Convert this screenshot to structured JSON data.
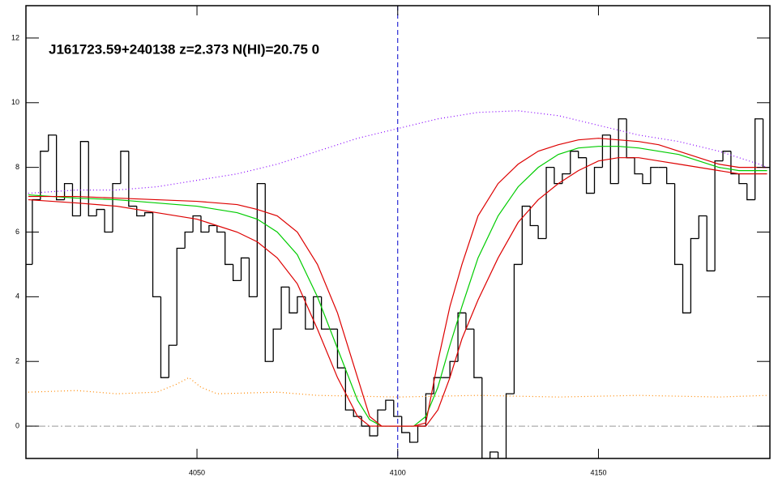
{
  "chart_data": {
    "type": "line",
    "annotation": "J161723.59+240138 z=2.373 N(HI)=20.75 0",
    "xlim": [
      4007.4,
      4192.7
    ],
    "ylim": [
      -1,
      13
    ],
    "xticks": [
      4050,
      4100,
      4150
    ],
    "yticks": [
      0,
      2,
      4,
      6,
      8,
      10,
      12
    ],
    "vline": 4100,
    "hline": 0,
    "series": [
      {
        "color": "#000000",
        "style": "step",
        "x": [
          4008,
          4010,
          4012,
          4014,
          4016,
          4018,
          4020,
          4022,
          4024,
          4026,
          4028,
          4030,
          4032,
          4034,
          4036,
          4038,
          4040,
          4042,
          4044,
          4046,
          4048,
          4050,
          4052,
          4054,
          4056,
          4058,
          4060,
          4062,
          4064,
          4066,
          4068,
          4070,
          4072,
          4074,
          4076,
          4078,
          4080,
          4082,
          4084,
          4086,
          4088,
          4090,
          4092,
          4094,
          4096,
          4098,
          4100,
          4102,
          4104,
          4106,
          4108,
          4110,
          4112,
          4114,
          4116,
          4118,
          4120,
          4122,
          4124,
          4126,
          4128,
          4130,
          4132,
          4134,
          4136,
          4138,
          4140,
          4142,
          4144,
          4146,
          4148,
          4150,
          4152,
          4154,
          4156,
          4158,
          4160,
          4162,
          4164,
          4166,
          4168,
          4170,
          4172,
          4174,
          4176,
          4178,
          4180,
          4182,
          4184,
          4186,
          4188,
          4190,
          4192
        ],
        "values": [
          5,
          7,
          8.5,
          9,
          7,
          7.5,
          6.5,
          8.8,
          6.5,
          6.7,
          6,
          7.5,
          8.5,
          6.8,
          6.5,
          6.6,
          4,
          1.5,
          2.5,
          5.5,
          6,
          6.5,
          6,
          6.2,
          6,
          5,
          4.5,
          5.2,
          4,
          7.5,
          2,
          3,
          4.3,
          3.5,
          4,
          3,
          4,
          3,
          3,
          1.8,
          0.5,
          0.3,
          0,
          -0.3,
          0.5,
          0.8,
          0.3,
          -0.2,
          -0.5,
          0,
          1,
          1.5,
          1.5,
          2,
          3.5,
          3,
          1.5,
          -1,
          -0.8,
          -1,
          1,
          5,
          6.8,
          6.2,
          5.8,
          8,
          7.5,
          7.8,
          8.5,
          8.3,
          7.2,
          8,
          9,
          7.5,
          9.5,
          8.3,
          7.8,
          7.5,
          8,
          8,
          7.5,
          5,
          3.5,
          5.8,
          6.5,
          4.8,
          8.2,
          8.5,
          7.8,
          7.5,
          7,
          9.5,
          8
        ]
      },
      {
        "color": "#00cc00",
        "style": "solid",
        "x": [
          4008,
          4020,
          4030,
          4040,
          4050,
          4060,
          4065,
          4070,
          4075,
          4080,
          4085,
          4090,
          4093,
          4096,
          4100,
          4104,
          4107,
          4110,
          4113,
          4116,
          4120,
          4125,
          4130,
          4135,
          4140,
          4145,
          4150,
          4155,
          4160,
          4165,
          4170,
          4175,
          4180,
          4185,
          4192
        ],
        "values": [
          7.15,
          7.05,
          7,
          6.9,
          6.8,
          6.6,
          6.4,
          6,
          5.3,
          4,
          2.4,
          0.8,
          0.2,
          0,
          0,
          0,
          0.3,
          1.2,
          2.5,
          3.7,
          5.2,
          6.5,
          7.4,
          8,
          8.4,
          8.6,
          8.65,
          8.65,
          8.6,
          8.5,
          8.4,
          8.2,
          8,
          7.9,
          7.9
        ]
      },
      {
        "color": "#dd0000",
        "style": "solid",
        "x": [
          4008,
          4020,
          4030,
          4040,
          4050,
          4060,
          4065,
          4070,
          4075,
          4080,
          4085,
          4090,
          4093,
          4096,
          4100,
          4104,
          4107,
          4110,
          4113,
          4116,
          4120,
          4125,
          4130,
          4135,
          4140,
          4145,
          4150,
          4155,
          4160,
          4165,
          4170,
          4175,
          4180,
          4185,
          4192
        ],
        "values": [
          7.1,
          7.1,
          7.05,
          7,
          6.95,
          6.85,
          6.7,
          6.5,
          6,
          5,
          3.5,
          1.5,
          0.3,
          0,
          0,
          0,
          0.1,
          2,
          3.7,
          5,
          6.5,
          7.5,
          8.1,
          8.5,
          8.7,
          8.85,
          8.9,
          8.85,
          8.8,
          8.7,
          8.5,
          8.3,
          8.1,
          8,
          8
        ]
      },
      {
        "color": "#dd0000",
        "style": "solid",
        "x": [
          4008,
          4020,
          4030,
          4040,
          4050,
          4060,
          4065,
          4070,
          4075,
          4080,
          4085,
          4090,
          4093,
          4096,
          4100,
          4104,
          4107,
          4110,
          4113,
          4116,
          4120,
          4125,
          4130,
          4135,
          4140,
          4145,
          4150,
          4155,
          4160,
          4165,
          4170,
          4175,
          4180,
          4185,
          4192
        ],
        "values": [
          7,
          6.9,
          6.8,
          6.6,
          6.4,
          6,
          5.7,
          5.2,
          4.4,
          3,
          1.5,
          0.3,
          0,
          0,
          0,
          0,
          0,
          0.5,
          1.5,
          2.7,
          3.9,
          5.2,
          6.3,
          7,
          7.5,
          7.9,
          8.2,
          8.3,
          8.3,
          8.2,
          8.1,
          8,
          7.9,
          7.8,
          7.8
        ]
      },
      {
        "color": "#8800ff",
        "style": "dotted",
        "x": [
          4008,
          4020,
          4030,
          4040,
          4050,
          4060,
          4070,
          4080,
          4090,
          4100,
          4110,
          4120,
          4130,
          4140,
          4150,
          4160,
          4170,
          4180,
          4190,
          4192
        ],
        "values": [
          7.2,
          7.3,
          7.3,
          7.4,
          7.6,
          7.8,
          8.1,
          8.5,
          8.9,
          9.2,
          9.5,
          9.7,
          9.75,
          9.6,
          9.3,
          9,
          8.8,
          8.5,
          8.1,
          8
        ]
      },
      {
        "color": "#ff8800",
        "style": "dotted",
        "x": [
          4008,
          4020,
          4030,
          4040,
          4045,
          4048,
          4051,
          4055,
          4070,
          4080,
          4100,
          4120,
          4140,
          4160,
          4180,
          4192
        ],
        "values": [
          1.05,
          1.1,
          1.0,
          1.05,
          1.3,
          1.5,
          1.2,
          1.0,
          1.05,
          0.95,
          0.9,
          0.95,
          0.9,
          0.95,
          0.9,
          0.95
        ]
      }
    ]
  }
}
